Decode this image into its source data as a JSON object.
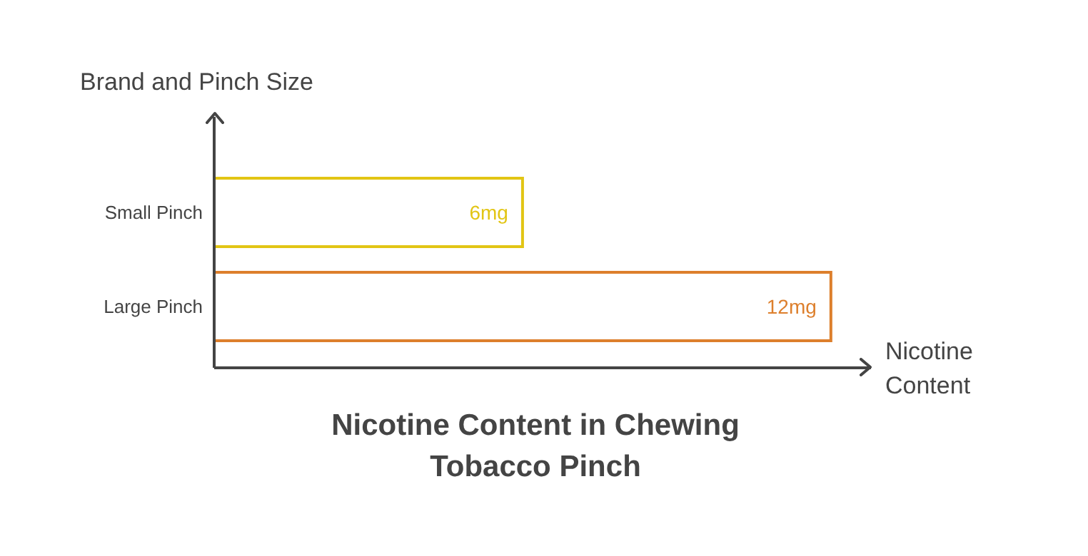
{
  "chart_data": {
    "type": "bar",
    "orientation": "horizontal",
    "title": "Nicotine Content in Chewing Tobacco Pinch",
    "xlabel": "Nicotine Content",
    "ylabel": "Brand and Pinch Size",
    "categories": [
      "Small Pinch",
      "Large Pinch"
    ],
    "values": [
      6,
      12
    ],
    "colors": [
      "#e2c514",
      "#dd7f2c"
    ],
    "value_labels": [
      "6mg",
      "12mg"
    ]
  }
}
